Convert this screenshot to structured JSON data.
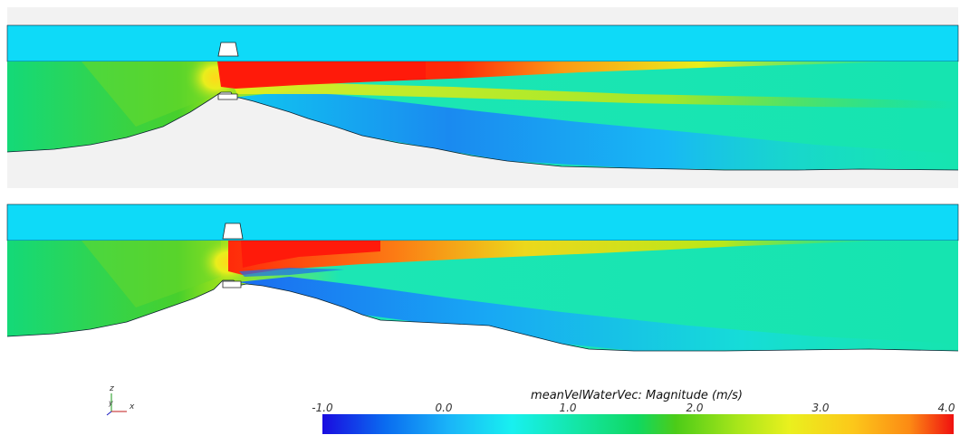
{
  "colorbar": {
    "title": "meanVelWaterVec: Magnitude (m/s)",
    "ticks": [
      "-1.0",
      "0.0",
      "1.0",
      "2.0",
      "3.0",
      "4.0"
    ],
    "colors": [
      "#1a0ce0",
      "#0a6cf0",
      "#1ab4f8",
      "#18f0f0",
      "#14e6a8",
      "#10d860",
      "#4ccc18",
      "#aae61a",
      "#eaf01e",
      "#fcc81a",
      "#fc8a14",
      "#f01010"
    ]
  },
  "axes": {
    "z": "z",
    "y": "y",
    "x": "x"
  },
  "palette": {
    "water_surface": "#0edaf8",
    "ground": "#f2f2f2",
    "high_velocity": "#ff1a0a",
    "low_velocity": "#1a8af0",
    "mid_velocity": "#16dc9a"
  }
}
